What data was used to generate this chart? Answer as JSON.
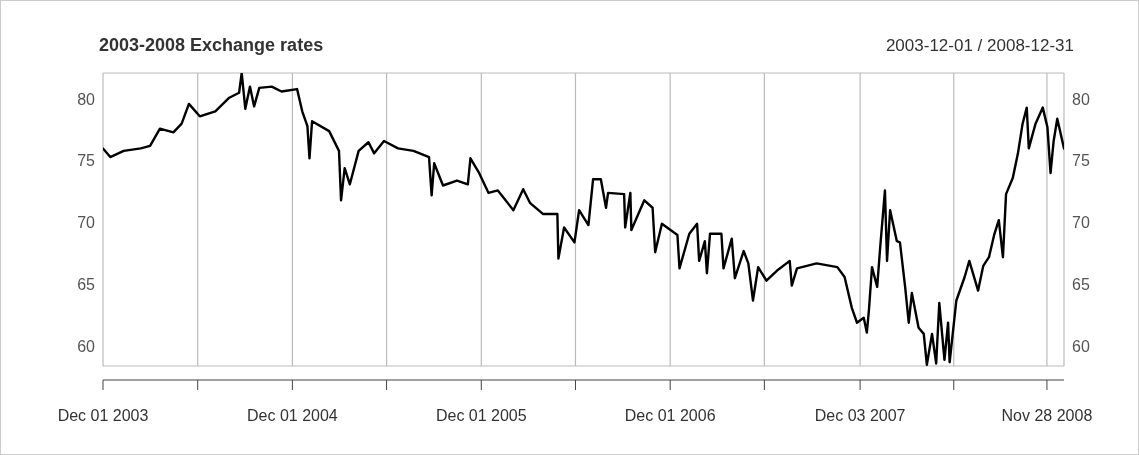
{
  "chart_data": {
    "type": "line",
    "title": "2003-2008 Exchange rates",
    "subtitle": "2003-12-01 / 2008-12-31",
    "x": [
      "2003-12-01",
      "2003-12-15",
      "2004-01-10",
      "2004-02-12",
      "2004-03-01",
      "2004-03-20",
      "2004-04-15",
      "2004-05-01",
      "2004-05-15",
      "2004-06-05",
      "2004-07-05",
      "2004-08-01",
      "2004-08-20",
      "2004-08-25",
      "2004-09-01",
      "2004-09-10",
      "2004-09-18",
      "2004-09-28",
      "2004-10-22",
      "2004-11-10",
      "2004-12-10",
      "2004-12-20",
      "2004-12-30",
      "2005-01-03",
      "2005-01-08",
      "2005-02-10",
      "2005-03-01",
      "2005-03-05",
      "2005-03-12",
      "2005-03-22",
      "2005-04-08",
      "2005-04-27",
      "2005-05-08",
      "2005-05-27",
      "2005-06-23",
      "2005-07-23",
      "2005-08-22",
      "2005-08-27",
      "2005-09-01",
      "2005-09-18",
      "2005-10-15",
      "2005-11-05",
      "2005-11-10",
      "2005-11-27",
      "2005-12-15",
      "2006-01-02",
      "2006-02-01",
      "2006-02-20",
      "2006-03-05",
      "2006-03-30",
      "2006-04-27",
      "2006-04-29",
      "2006-05-10",
      "2006-05-30",
      "2006-06-08",
      "2006-06-26",
      "2006-07-05",
      "2006-07-20",
      "2006-07-30",
      "2006-08-03",
      "2006-09-03",
      "2006-09-05",
      "2006-09-15",
      "2006-09-17",
      "2006-10-12",
      "2006-10-28",
      "2006-11-02",
      "2006-11-15",
      "2006-12-15",
      "2006-12-19",
      "2007-01-07",
      "2007-01-22",
      "2007-01-26",
      "2007-02-06",
      "2007-02-10",
      "2007-02-16",
      "2007-03-10",
      "2007-03-14",
      "2007-03-30",
      "2007-04-05",
      "2007-04-22",
      "2007-05-01",
      "2007-05-10",
      "2007-05-20",
      "2007-06-05",
      "2007-06-25",
      "2007-07-20",
      "2007-07-24",
      "2007-08-03",
      "2007-09-10",
      "2007-10-20",
      "2007-11-03",
      "2007-11-17",
      "2007-11-27",
      "2007-12-10",
      "2007-12-16",
      "2007-12-20",
      "2007-12-26",
      "2008-01-05",
      "2008-01-11",
      "2008-01-20",
      "2008-01-24",
      "2008-01-30",
      "2008-02-12",
      "2008-02-18",
      "2008-02-28",
      "2008-03-06",
      "2008-03-12",
      "2008-03-25",
      "2008-04-04",
      "2008-04-10",
      "2008-04-20",
      "2008-04-28",
      "2008-05-04",
      "2008-05-14",
      "2008-05-21",
      "2008-05-24",
      "2008-06-06",
      "2008-06-22",
      "2008-07-01",
      "2008-07-18",
      "2008-07-28",
      "2008-08-08",
      "2008-08-18",
      "2008-08-27",
      "2008-09-04",
      "2008-09-10",
      "2008-09-23",
      "2008-10-03",
      "2008-10-12",
      "2008-10-20",
      "2008-10-24",
      "2008-11-06",
      "2008-11-20",
      "2008-11-29",
      "2008-12-05",
      "2008-12-11",
      "2008-12-18",
      "2008-12-31"
    ],
    "series": [
      {
        "color": "#000000",
        "values": [
          76.0,
          75.3,
          75.8,
          76.0,
          76.2,
          77.6,
          77.3,
          78.0,
          79.6,
          78.6,
          79.0,
          80.1,
          80.5,
          82.1,
          79.2,
          81.0,
          79.4,
          80.9,
          81.0,
          80.6,
          80.8,
          79.0,
          77.8,
          75.2,
          78.2,
          77.4,
          75.8,
          71.8,
          74.4,
          73.1,
          75.8,
          76.5,
          75.6,
          76.6,
          76.0,
          75.8,
          75.3,
          72.2,
          74.8,
          73.0,
          73.4,
          73.1,
          75.2,
          74.0,
          72.4,
          72.6,
          71.0,
          72.7,
          71.6,
          70.7,
          70.7,
          67.1,
          69.6,
          68.4,
          71.0,
          69.8,
          73.5,
          73.5,
          71.2,
          72.4,
          72.3,
          69.6,
          72.4,
          69.4,
          71.8,
          71.2,
          67.6,
          69.9,
          69.0,
          66.3,
          69.1,
          69.9,
          66.9,
          68.5,
          65.9,
          69.1,
          69.1,
          66.3,
          68.7,
          65.5,
          67.7,
          66.7,
          63.7,
          66.4,
          65.3,
          66.1,
          66.9,
          64.9,
          66.3,
          66.7,
          66.4,
          65.6,
          63.1,
          61.9,
          62.3,
          61.1,
          62.9,
          66.4,
          64.8,
          68.1,
          72.6,
          66.9,
          71.0,
          68.5,
          68.4,
          64.8,
          61.9,
          64.3,
          61.5,
          61.0,
          58.5,
          61.0,
          58.6,
          63.5,
          58.9,
          61.9,
          58.7,
          63.7,
          65.6,
          66.9,
          64.5,
          66.5,
          67.2,
          69.0,
          70.2,
          67.2,
          72.3,
          73.6,
          75.6,
          78.0,
          79.3,
          76.0,
          78.0,
          79.3,
          77.7,
          74.0,
          76.6,
          78.4,
          76.0
        ]
      }
    ],
    "xlim": [
      "2003-12-01",
      "2008-12-31"
    ],
    "xticks": [
      {
        "value": "2003-12-01",
        "label": "Dec 01 2003"
      },
      {
        "value": "2004-06-01",
        "label": null
      },
      {
        "value": "2004-12-01",
        "label": "Dec 01 2004"
      },
      {
        "value": "2005-06-01",
        "label": null
      },
      {
        "value": "2005-12-01",
        "label": "Dec 01 2005"
      },
      {
        "value": "2006-06-01",
        "label": null
      },
      {
        "value": "2006-12-01",
        "label": "Dec 01 2006"
      },
      {
        "value": "2007-06-01",
        "label": null
      },
      {
        "value": "2007-12-03",
        "label": "Dec 03 2007"
      },
      {
        "value": "2008-06-01",
        "label": null
      },
      {
        "value": "2008-11-28",
        "label": "Nov 28 2008"
      }
    ],
    "ylim": [
      58.4,
      82.1
    ],
    "yticks": [
      60,
      65,
      70,
      75,
      80
    ],
    "y2lim": [
      58.4,
      82.1
    ],
    "y2ticks": [
      60,
      65,
      70,
      75,
      80
    ],
    "grid": true,
    "marker": "none",
    "line_style": "solid"
  }
}
